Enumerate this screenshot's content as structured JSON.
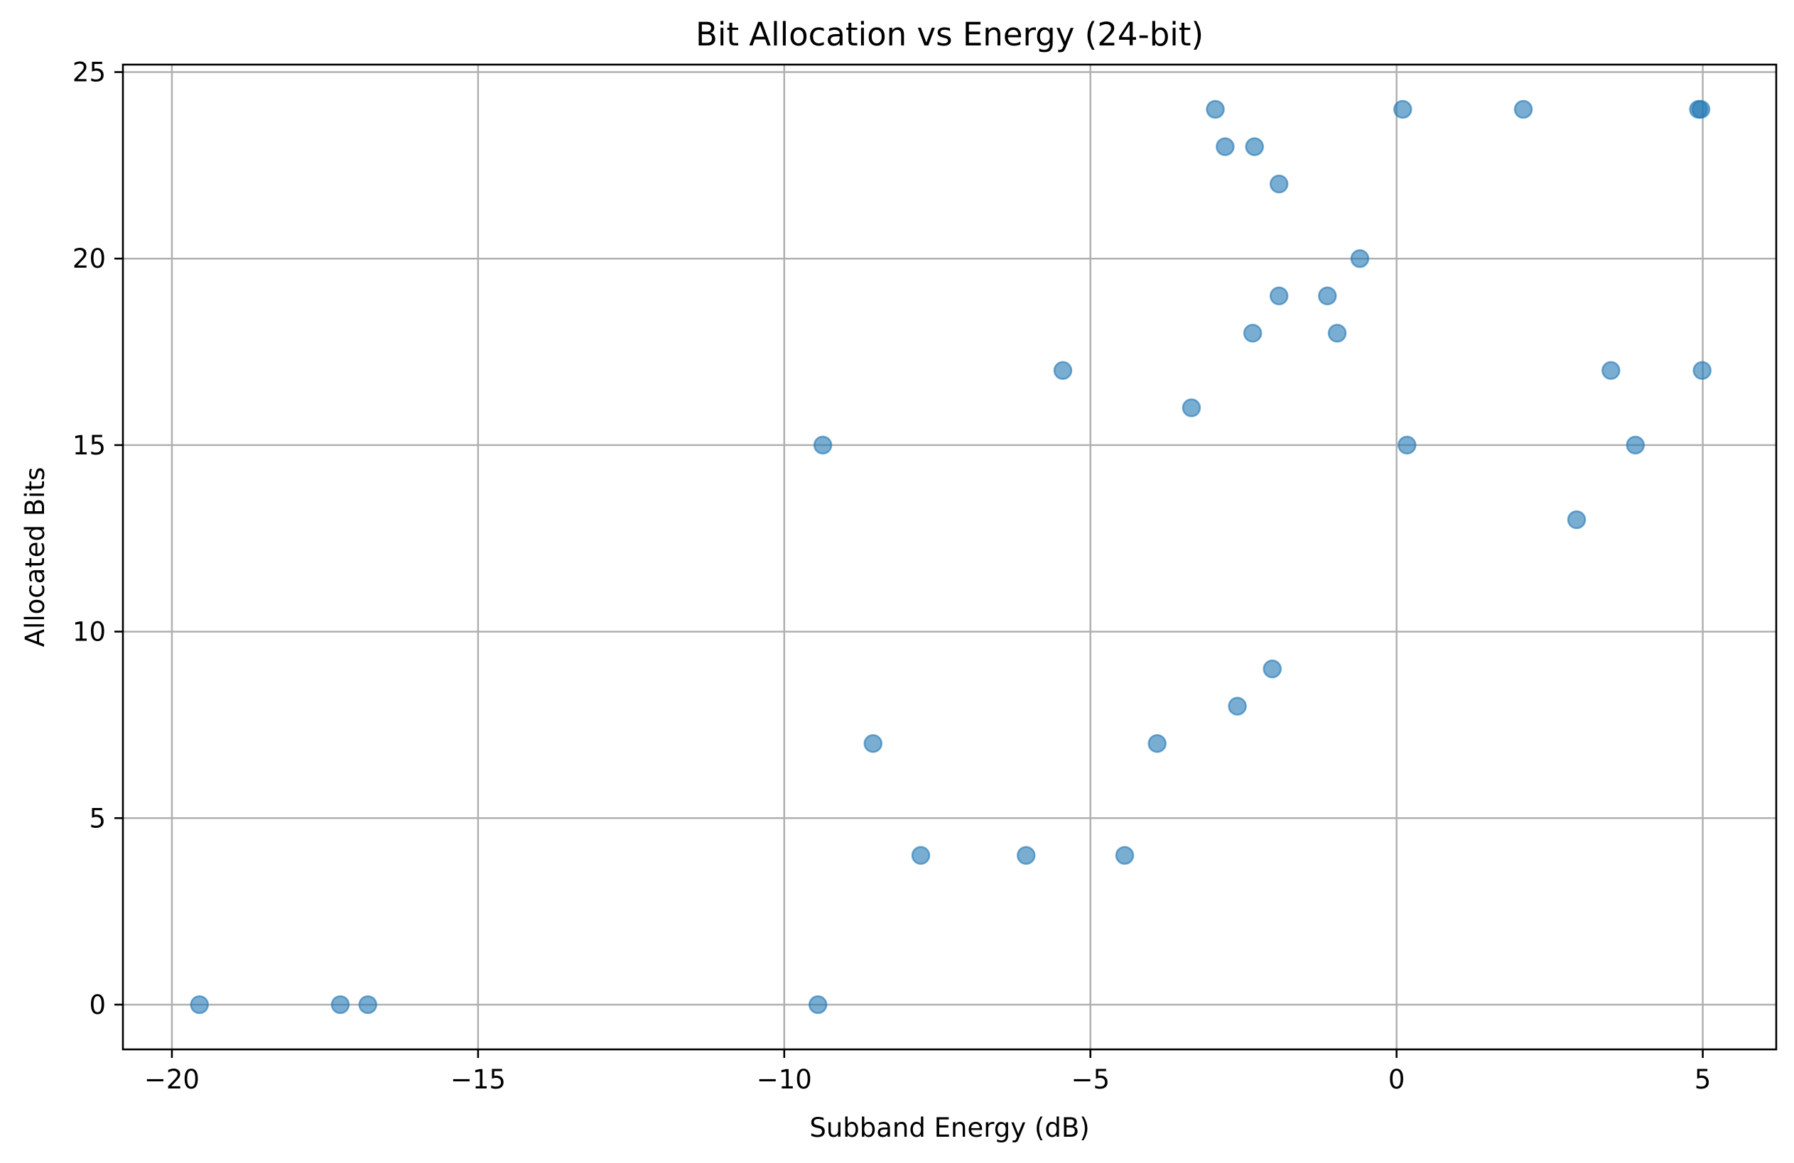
{
  "chart_data": {
    "type": "scatter",
    "title": "Bit Allocation vs Energy (24-bit)",
    "xlabel": "Subband Energy (dB)",
    "ylabel": "Allocated Bits",
    "xlim": [
      -20.8,
      6.2
    ],
    "ylim": [
      -1.2,
      25.2
    ],
    "xticks": [
      -20,
      -15,
      -10,
      -5,
      0,
      5
    ],
    "xtick_labels": [
      "−20",
      "−15",
      "−10",
      "−5",
      "0",
      "5"
    ],
    "yticks": [
      0,
      5,
      10,
      15,
      20,
      25
    ],
    "ytick_labels": [
      "0",
      "5",
      "10",
      "15",
      "20",
      "25"
    ],
    "grid": true,
    "marker_color": "#1f77b4",
    "marker_alpha": 0.6,
    "points": [
      {
        "x": -19.55,
        "y": 0
      },
      {
        "x": -17.25,
        "y": 0
      },
      {
        "x": -16.8,
        "y": 0
      },
      {
        "x": -9.45,
        "y": 0
      },
      {
        "x": -9.37,
        "y": 15
      },
      {
        "x": -8.55,
        "y": 7
      },
      {
        "x": -7.77,
        "y": 4
      },
      {
        "x": -6.05,
        "y": 4
      },
      {
        "x": -5.45,
        "y": 17
      },
      {
        "x": -4.44,
        "y": 4
      },
      {
        "x": -3.91,
        "y": 7
      },
      {
        "x": -3.35,
        "y": 16
      },
      {
        "x": -2.96,
        "y": 24
      },
      {
        "x": -2.8,
        "y": 23
      },
      {
        "x": -2.6,
        "y": 8
      },
      {
        "x": -2.35,
        "y": 18
      },
      {
        "x": -2.32,
        "y": 23
      },
      {
        "x": -2.03,
        "y": 9
      },
      {
        "x": -1.92,
        "y": 22
      },
      {
        "x": -1.92,
        "y": 19
      },
      {
        "x": -1.13,
        "y": 19
      },
      {
        "x": -0.97,
        "y": 18
      },
      {
        "x": -0.6,
        "y": 20
      },
      {
        "x": 0.1,
        "y": 24
      },
      {
        "x": 0.17,
        "y": 15
      },
      {
        "x": 2.07,
        "y": 24
      },
      {
        "x": 2.94,
        "y": 13
      },
      {
        "x": 3.5,
        "y": 17
      },
      {
        "x": 3.9,
        "y": 15
      },
      {
        "x": 4.93,
        "y": 24
      },
      {
        "x": 4.97,
        "y": 24
      },
      {
        "x": 4.99,
        "y": 17
      }
    ]
  }
}
